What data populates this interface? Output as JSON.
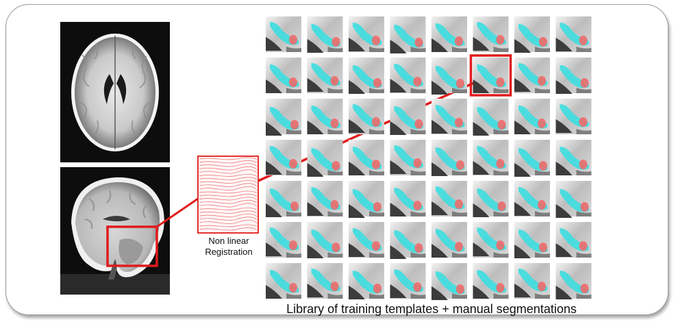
{
  "registration": {
    "line1": "Non linear",
    "line2": "Registration"
  },
  "library": {
    "caption": "Library of training templates + manual segmentations",
    "rows": 7,
    "cols": 8,
    "highlight": {
      "row": 1,
      "col": 5
    }
  },
  "colors": {
    "highlight": "#e01b1b",
    "segmentation_primary": "#3fdde0",
    "segmentation_secondary": "#f06a6a",
    "mri_background": "#0d0d0d"
  }
}
